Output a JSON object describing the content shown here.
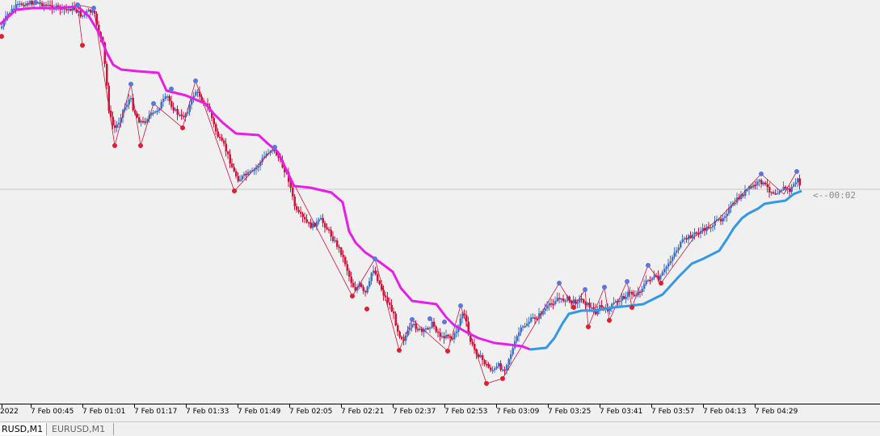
{
  "chart_data": {
    "type": "candlestick",
    "bull_color": "#4472c4",
    "bear_color": "#d2143c",
    "price_line_color": "#c8c8c8",
    "trail_upper_color": "#e61ee6",
    "trail_lower_color": "#3399e6",
    "x_ticks": [
      "2022",
      "7 Feb 00:45",
      "7 Feb 01:01",
      "7 Feb 01:17",
      "7 Feb 01:33",
      "7 Feb 01:49",
      "7 Feb 02:05",
      "7 Feb 02:21",
      "7 Feb 02:37",
      "7 Feb 02:53",
      "7 Feb 03:09",
      "7 Feb 03:25",
      "7 Feb 03:41",
      "7 Feb 03:57",
      "7 Feb 04:13",
      "7 Feb 04:29"
    ],
    "countdown": "<--00:02",
    "close_path": [
      [
        0,
        35
      ],
      [
        8,
        18
      ],
      [
        18,
        8
      ],
      [
        30,
        4
      ],
      [
        45,
        3
      ],
      [
        60,
        8
      ],
      [
        72,
        10
      ],
      [
        80,
        12
      ],
      [
        90,
        10
      ],
      [
        100,
        20
      ],
      [
        108,
        14
      ],
      [
        115,
        16
      ],
      [
        120,
        35
      ],
      [
        126,
        55
      ],
      [
        130,
        95
      ],
      [
        134,
        140
      ],
      [
        140,
        160
      ],
      [
        146,
        150
      ],
      [
        150,
        138
      ],
      [
        156,
        128
      ],
      [
        160,
        120
      ],
      [
        164,
        135
      ],
      [
        170,
        148
      ],
      [
        176,
        152
      ],
      [
        182,
        144
      ],
      [
        190,
        140
      ],
      [
        196,
        132
      ],
      [
        200,
        125
      ],
      [
        206,
        120
      ],
      [
        212,
        132
      ],
      [
        218,
        140
      ],
      [
        224,
        146
      ],
      [
        230,
        138
      ],
      [
        236,
        125
      ],
      [
        240,
        112
      ],
      [
        246,
        118
      ],
      [
        252,
        128
      ],
      [
        258,
        135
      ],
      [
        262,
        150
      ],
      [
        266,
        162
      ],
      [
        270,
        172
      ],
      [
        276,
        180
      ],
      [
        282,
        195
      ],
      [
        288,
        212
      ],
      [
        294,
        222
      ],
      [
        300,
        218
      ],
      [
        306,
        215
      ],
      [
        312,
        212
      ],
      [
        318,
        205
      ],
      [
        324,
        196
      ],
      [
        330,
        188
      ],
      [
        336,
        184
      ],
      [
        342,
        192
      ],
      [
        348,
        205
      ],
      [
        354,
        215
      ],
      [
        358,
        230
      ],
      [
        362,
        250
      ],
      [
        366,
        262
      ],
      [
        372,
        268
      ],
      [
        378,
        275
      ],
      [
        384,
        280
      ],
      [
        390,
        276
      ],
      [
        396,
        272
      ],
      [
        402,
        280
      ],
      [
        408,
        290
      ],
      [
        414,
        300
      ],
      [
        420,
        310
      ],
      [
        426,
        325
      ],
      [
        432,
        345
      ],
      [
        438,
        358
      ],
      [
        444,
        352
      ],
      [
        450,
        365
      ],
      [
        456,
        350
      ],
      [
        460,
        330
      ],
      [
        464,
        340
      ],
      [
        468,
        350
      ],
      [
        474,
        365
      ],
      [
        480,
        375
      ],
      [
        486,
        390
      ],
      [
        492,
        412
      ],
      [
        498,
        420
      ],
      [
        504,
        410
      ],
      [
        510,
        402
      ],
      [
        516,
        406
      ],
      [
        522,
        412
      ],
      [
        528,
        404
      ],
      [
        534,
        400
      ],
      [
        540,
        410
      ],
      [
        546,
        418
      ],
      [
        552,
        412
      ],
      [
        558,
        420
      ],
      [
        564,
        408
      ],
      [
        568,
        395
      ],
      [
        572,
        385
      ],
      [
        576,
        400
      ],
      [
        580,
        420
      ],
      [
        586,
        432
      ],
      [
        592,
        440
      ],
      [
        598,
        448
      ],
      [
        604,
        455
      ],
      [
        610,
        458
      ],
      [
        616,
        452
      ],
      [
        622,
        458
      ],
      [
        628,
        444
      ],
      [
        634,
        430
      ],
      [
        640,
        412
      ],
      [
        646,
        405
      ],
      [
        652,
        398
      ],
      [
        658,
        394
      ],
      [
        664,
        392
      ],
      [
        670,
        385
      ],
      [
        676,
        380
      ],
      [
        682,
        375
      ],
      [
        688,
        368
      ],
      [
        694,
        372
      ],
      [
        700,
        368
      ],
      [
        706,
        374
      ],
      [
        712,
        372
      ],
      [
        718,
        370
      ],
      [
        724,
        375
      ],
      [
        730,
        380
      ],
      [
        736,
        386
      ],
      [
        742,
        378
      ],
      [
        748,
        384
      ],
      [
        754,
        380
      ],
      [
        760,
        374
      ],
      [
        766,
        370
      ],
      [
        772,
        366
      ],
      [
        778,
        362
      ],
      [
        784,
        365
      ],
      [
        790,
        360
      ],
      [
        796,
        352
      ],
      [
        802,
        345
      ],
      [
        808,
        342
      ],
      [
        814,
        346
      ],
      [
        820,
        336
      ],
      [
        826,
        325
      ],
      [
        832,
        315
      ],
      [
        838,
        305
      ],
      [
        844,
        298
      ],
      [
        850,
        294
      ],
      [
        856,
        290
      ],
      [
        862,
        288
      ],
      [
        868,
        285
      ],
      [
        874,
        282
      ],
      [
        880,
        278
      ],
      [
        886,
        274
      ],
      [
        892,
        270
      ],
      [
        898,
        262
      ],
      [
        904,
        256
      ],
      [
        910,
        248
      ],
      [
        916,
        242
      ],
      [
        922,
        236
      ],
      [
        928,
        232
      ],
      [
        934,
        228
      ],
      [
        940,
        224
      ],
      [
        946,
        230
      ],
      [
        952,
        236
      ],
      [
        958,
        238
      ],
      [
        964,
        234
      ],
      [
        970,
        232
      ],
      [
        976,
        236
      ],
      [
        982,
        226
      ],
      [
        986,
        222
      ],
      [
        990,
        232
      ]
    ],
    "trail_upper": [
      [
        0,
        30
      ],
      [
        20,
        12
      ],
      [
        40,
        10
      ],
      [
        70,
        10
      ],
      [
        96,
        8
      ],
      [
        110,
        20
      ],
      [
        122,
        40
      ],
      [
        132,
        65
      ],
      [
        140,
        80
      ],
      [
        150,
        86
      ],
      [
        170,
        88
      ],
      [
        196,
        90
      ],
      [
        206,
        112
      ],
      [
        230,
        118
      ],
      [
        254,
        128
      ],
      [
        264,
        140
      ],
      [
        276,
        152
      ],
      [
        292,
        165
      ],
      [
        320,
        167
      ],
      [
        332,
        178
      ],
      [
        344,
        188
      ],
      [
        352,
        205
      ],
      [
        364,
        230
      ],
      [
        384,
        232
      ],
      [
        410,
        238
      ],
      [
        424,
        250
      ],
      [
        432,
        286
      ],
      [
        440,
        300
      ],
      [
        452,
        312
      ],
      [
        470,
        324
      ],
      [
        486,
        336
      ],
      [
        496,
        356
      ],
      [
        510,
        372
      ],
      [
        540,
        376
      ],
      [
        552,
        392
      ],
      [
        562,
        402
      ],
      [
        576,
        410
      ],
      [
        592,
        418
      ],
      [
        612,
        424
      ],
      [
        630,
        426
      ],
      [
        646,
        428
      ],
      [
        656,
        432
      ]
    ],
    "trail_lower": [
      [
        656,
        432
      ],
      [
        676,
        430
      ],
      [
        686,
        418
      ],
      [
        696,
        400
      ],
      [
        704,
        388
      ],
      [
        720,
        384
      ],
      [
        736,
        384
      ],
      [
        760,
        380
      ],
      [
        780,
        378
      ],
      [
        796,
        376
      ],
      [
        808,
        370
      ],
      [
        820,
        364
      ],
      [
        840,
        342
      ],
      [
        856,
        326
      ],
      [
        870,
        320
      ],
      [
        890,
        310
      ],
      [
        900,
        295
      ],
      [
        908,
        282
      ],
      [
        918,
        270
      ],
      [
        926,
        264
      ],
      [
        938,
        258
      ],
      [
        946,
        252
      ],
      [
        958,
        250
      ],
      [
        972,
        248
      ],
      [
        982,
        240
      ],
      [
        992,
        236
      ]
    ],
    "fractal_highs": [
      [
        44,
        3
      ],
      [
        96,
        6
      ],
      [
        116,
        10
      ],
      [
        162,
        104
      ],
      [
        190,
        128
      ],
      [
        212,
        110
      ],
      [
        242,
        100
      ],
      [
        340,
        182
      ],
      [
        464,
        320
      ],
      [
        510,
        395
      ],
      [
        532,
        394
      ],
      [
        550,
        398
      ],
      [
        570,
        378
      ],
      [
        692,
        350
      ],
      [
        724,
        358
      ],
      [
        748,
        355
      ],
      [
        776,
        348
      ],
      [
        802,
        328
      ],
      [
        942,
        215
      ],
      [
        986,
        212
      ]
    ],
    "fractal_lows": [
      [
        2,
        45
      ],
      [
        102,
        56
      ],
      [
        142,
        180
      ],
      [
        174,
        180
      ],
      [
        226,
        158
      ],
      [
        290,
        236
      ],
      [
        436,
        366
      ],
      [
        454,
        382
      ],
      [
        494,
        433
      ],
      [
        554,
        434
      ],
      [
        602,
        474
      ],
      [
        622,
        468
      ],
      [
        710,
        380
      ],
      [
        728,
        404
      ],
      [
        754,
        396
      ],
      [
        782,
        380
      ],
      [
        818,
        350
      ]
    ],
    "zigzag_red": [
      [
        102,
        56
      ],
      [
        96,
        6
      ],
      [
        116,
        10
      ],
      [
        142,
        180
      ],
      [
        162,
        104
      ],
      [
        174,
        180
      ],
      [
        190,
        128
      ],
      [
        226,
        158
      ],
      [
        242,
        100
      ],
      [
        290,
        236
      ],
      [
        340,
        182
      ],
      [
        436,
        366
      ],
      [
        464,
        320
      ],
      [
        494,
        433
      ],
      [
        510,
        395
      ],
      [
        554,
        434
      ],
      [
        570,
        378
      ],
      [
        602,
        474
      ],
      [
        622,
        468
      ],
      [
        692,
        350
      ],
      [
        710,
        380
      ],
      [
        724,
        358
      ],
      [
        728,
        404
      ],
      [
        748,
        355
      ],
      [
        754,
        396
      ],
      [
        776,
        348
      ],
      [
        782,
        380
      ],
      [
        802,
        328
      ],
      [
        818,
        350
      ],
      [
        860,
        292
      ],
      [
        888,
        272
      ],
      [
        942,
        215
      ],
      [
        970,
        240
      ],
      [
        986,
        212
      ]
    ]
  },
  "tabs": [
    "RUSD,M1",
    "EURUSD,M1"
  ]
}
